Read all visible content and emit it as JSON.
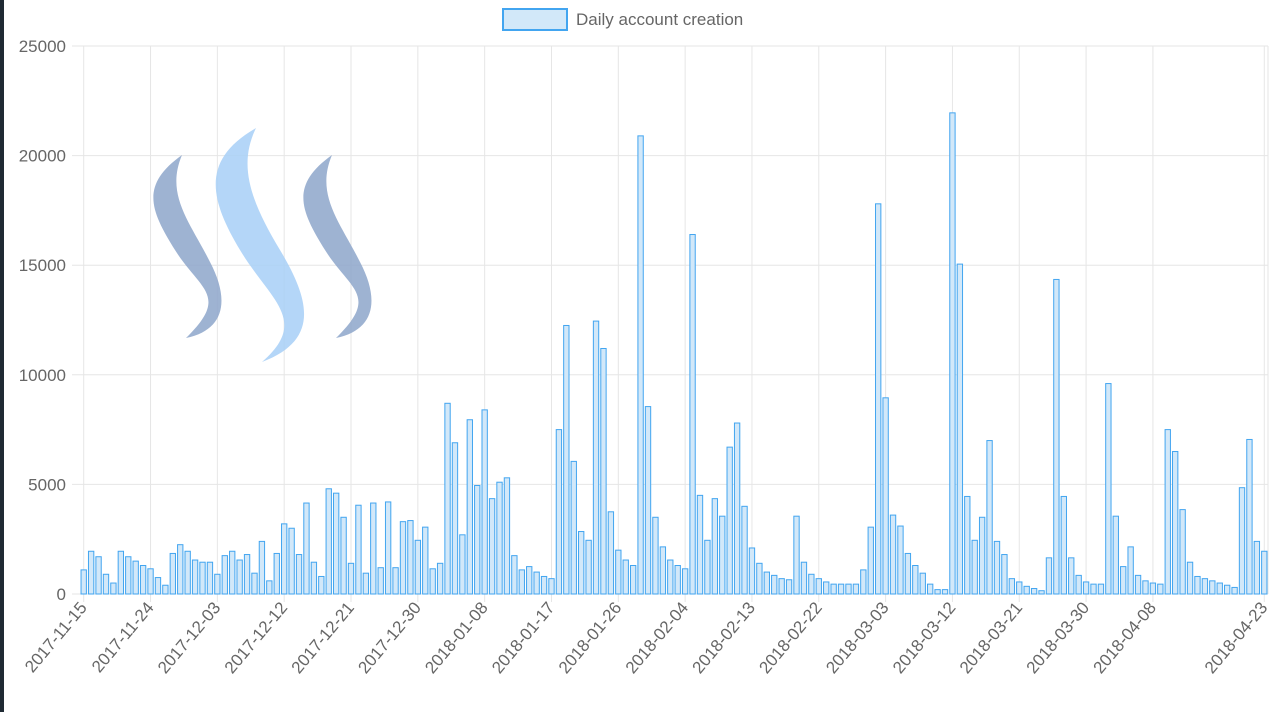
{
  "colors": {
    "bar_fill": "#d2e8f9",
    "bar_stroke": "#42a5f0",
    "grid": "#e6e6e6",
    "axis_text": "#666666",
    "logo_dark": "#8ea6cb",
    "logo_light": "#a8d0f7"
  },
  "logo": {
    "name": "steem-logo"
  },
  "chart_data": {
    "type": "bar",
    "title": "",
    "xlabel": "",
    "ylabel": "",
    "ylim": [
      0,
      25000
    ],
    "yticks": [
      0,
      5000,
      10000,
      15000,
      20000,
      25000
    ],
    "grid": true,
    "legend_position": "top-center",
    "x_tick_labels": [
      "2017-11-15",
      "2017-11-24",
      "2017-12-03",
      "2017-12-12",
      "2017-12-21",
      "2017-12-30",
      "2018-01-08",
      "2018-01-17",
      "2018-01-26",
      "2018-02-04",
      "2018-02-13",
      "2018-02-22",
      "2018-03-03",
      "2018-03-12",
      "2018-03-21",
      "2018-03-30",
      "2018-04-08",
      "2018-04-23"
    ],
    "start_date": "2017-11-15",
    "end_date": "2018-04-23",
    "series": [
      {
        "name": "Daily account creation",
        "values": [
          1100,
          1950,
          1700,
          900,
          500,
          1950,
          1700,
          1500,
          1300,
          1150,
          750,
          400,
          1850,
          2250,
          1950,
          1550,
          1450,
          1450,
          900,
          1750,
          1950,
          1550,
          1800,
          950,
          2400,
          600,
          1850,
          3200,
          3000,
          1800,
          4150,
          1450,
          800,
          4800,
          4600,
          3500,
          1400,
          4050,
          950,
          4150,
          1200,
          4200,
          1200,
          3300,
          3350,
          2450,
          3050,
          1150,
          1400,
          8700,
          6900,
          2700,
          7950,
          4950,
          8400,
          4350,
          5100,
          5300,
          1750,
          1100,
          1250,
          1000,
          800,
          700,
          7500,
          12250,
          6050,
          2850,
          2450,
          12450,
          11200,
          3750,
          2000,
          1550,
          1300,
          20900,
          8550,
          3500,
          2150,
          1550,
          1300,
          1150,
          16400,
          4500,
          2450,
          4350,
          3550,
          6700,
          7800,
          4000,
          2100,
          1400,
          1000,
          850,
          700,
          650,
          3550,
          1450,
          900,
          700,
          550,
          450,
          450,
          450,
          450,
          1100,
          3050,
          17800,
          8950,
          3600,
          3100,
          1850,
          1300,
          950,
          450,
          200,
          200,
          21950,
          15050,
          4450,
          2450,
          3500,
          7000,
          2400,
          1800,
          700,
          550,
          350,
          250,
          150,
          1650,
          14350,
          4450,
          1650,
          850,
          550,
          450,
          450,
          9600,
          3550,
          1250,
          2150,
          850,
          600,
          500,
          450,
          7500,
          6500,
          3850,
          1450,
          800,
          700,
          600,
          500,
          400,
          300,
          4850,
          7050,
          2400,
          1950
        ]
      }
    ]
  }
}
